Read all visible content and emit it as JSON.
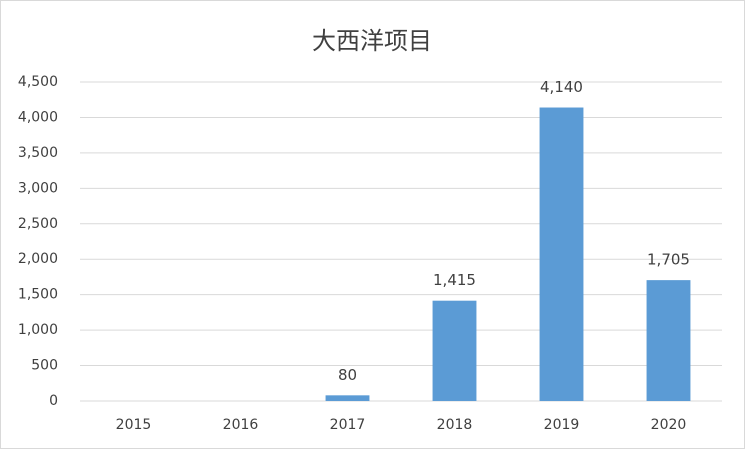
{
  "chart_data": {
    "type": "bar",
    "title": "大西洋项目",
    "categories": [
      "2015",
      "2016",
      "2017",
      "2018",
      "2019",
      "2020"
    ],
    "values": [
      null,
      null,
      80,
      1415,
      4140,
      1705
    ],
    "value_labels": [
      null,
      null,
      "80",
      "1,415",
      "4,140",
      "1,705"
    ],
    "color": "#5b9bd5",
    "ylim": [
      0,
      4500
    ],
    "yticks": [
      0,
      500,
      {
        "value": 1000,
        "label": "1,000"
      },
      {
        "value": 1500,
        "label": "1,500"
      },
      {
        "value": 2000,
        "label": "2,000"
      },
      {
        "value": 2500,
        "label": "2,500"
      },
      {
        "value": 3000,
        "label": "3,000"
      },
      {
        "value": 3500,
        "label": "3,500"
      },
      {
        "value": 4000,
        "label": "4,000"
      },
      {
        "value": 4500,
        "label": "4,500"
      }
    ],
    "grid": true
  }
}
